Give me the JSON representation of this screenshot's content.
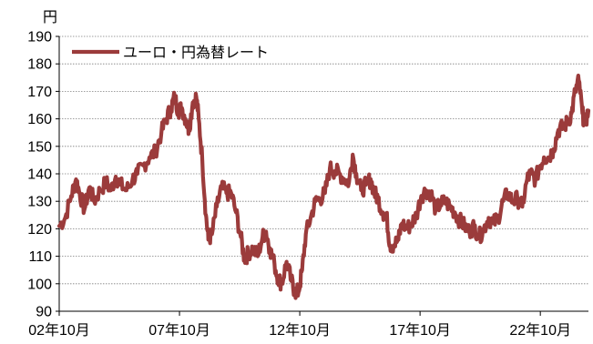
{
  "chart_data": {
    "type": "line",
    "unit_label": "円",
    "yticks": [
      90,
      100,
      110,
      120,
      130,
      140,
      150,
      160,
      170,
      180,
      190
    ],
    "ylim": [
      90,
      190
    ],
    "xlim": [
      2002.75,
      2024.75
    ],
    "xticks": [
      {
        "label": "02年10月",
        "value": 2002.75
      },
      {
        "label": "07年10月",
        "value": 2007.75
      },
      {
        "label": "12年10月",
        "value": 2012.75
      },
      {
        "label": "17年10月",
        "value": 2017.75
      },
      {
        "label": "22年10月",
        "value": 2022.75
      }
    ],
    "legend_position": "top-left",
    "grid": true,
    "series": [
      {
        "name": "ユーロ・円為替レート",
        "color": "#9b3b3b",
        "points": [
          [
            2002.75,
            121
          ],
          [
            2003.0,
            124
          ],
          [
            2003.25,
            132
          ],
          [
            2003.45,
            138
          ],
          [
            2003.6,
            133
          ],
          [
            2003.8,
            127
          ],
          [
            2004.0,
            135
          ],
          [
            2004.2,
            130
          ],
          [
            2004.45,
            134
          ],
          [
            2004.7,
            137
          ],
          [
            2004.9,
            134
          ],
          [
            2005.1,
            139
          ],
          [
            2005.3,
            136
          ],
          [
            2005.55,
            134
          ],
          [
            2005.8,
            138
          ],
          [
            2006.0,
            140
          ],
          [
            2006.25,
            143
          ],
          [
            2006.5,
            146
          ],
          [
            2006.75,
            148
          ],
          [
            2007.0,
            155
          ],
          [
            2007.2,
            160
          ],
          [
            2007.4,
            164
          ],
          [
            2007.55,
            168
          ],
          [
            2007.7,
            163
          ],
          [
            2007.85,
            164
          ],
          [
            2008.0,
            160
          ],
          [
            2008.15,
            156
          ],
          [
            2008.3,
            166
          ],
          [
            2008.45,
            168
          ],
          [
            2008.55,
            160
          ],
          [
            2008.7,
            145
          ],
          [
            2008.85,
            125
          ],
          [
            2008.95,
            116
          ],
          [
            2009.1,
            118
          ],
          [
            2009.3,
            128
          ],
          [
            2009.5,
            135
          ],
          [
            2009.7,
            133
          ],
          [
            2009.9,
            133
          ],
          [
            2010.1,
            126
          ],
          [
            2010.3,
            117
          ],
          [
            2010.45,
            109
          ],
          [
            2010.6,
            111
          ],
          [
            2010.8,
            113
          ],
          [
            2011.0,
            110
          ],
          [
            2011.2,
            117
          ],
          [
            2011.35,
            119
          ],
          [
            2011.5,
            113
          ],
          [
            2011.7,
            107
          ],
          [
            2011.85,
            102
          ],
          [
            2012.0,
            100
          ],
          [
            2012.2,
            108
          ],
          [
            2012.4,
            101
          ],
          [
            2012.55,
            97
          ],
          [
            2012.7,
            97
          ],
          [
            2012.85,
            105
          ],
          [
            2013.0,
            118
          ],
          [
            2013.2,
            124
          ],
          [
            2013.4,
            130
          ],
          [
            2013.6,
            131
          ],
          [
            2013.8,
            133
          ],
          [
            2014.0,
            142
          ],
          [
            2014.2,
            141
          ],
          [
            2014.4,
            140
          ],
          [
            2014.6,
            138
          ],
          [
            2014.8,
            137
          ],
          [
            2014.95,
            147
          ],
          [
            2015.1,
            140
          ],
          [
            2015.3,
            134
          ],
          [
            2015.5,
            136
          ],
          [
            2015.7,
            138
          ],
          [
            2015.85,
            133
          ],
          [
            2016.0,
            131
          ],
          [
            2016.2,
            126
          ],
          [
            2016.35,
            125
          ],
          [
            2016.5,
            114
          ],
          [
            2016.65,
            114
          ],
          [
            2016.85,
            116
          ],
          [
            2017.0,
            122
          ],
          [
            2017.2,
            120
          ],
          [
            2017.4,
            122
          ],
          [
            2017.6,
            125
          ],
          [
            2017.8,
            132
          ],
          [
            2018.0,
            134
          ],
          [
            2018.2,
            133
          ],
          [
            2018.4,
            127
          ],
          [
            2018.6,
            129
          ],
          [
            2018.8,
            130
          ],
          [
            2019.0,
            128
          ],
          [
            2019.2,
            126
          ],
          [
            2019.4,
            123
          ],
          [
            2019.6,
            121
          ],
          [
            2019.8,
            119
          ],
          [
            2020.0,
            121
          ],
          [
            2020.2,
            117
          ],
          [
            2020.4,
            120
          ],
          [
            2020.6,
            124
          ],
          [
            2020.8,
            122
          ],
          [
            2021.0,
            124
          ],
          [
            2021.2,
            130
          ],
          [
            2021.4,
            133
          ],
          [
            2021.6,
            130
          ],
          [
            2021.8,
            131
          ],
          [
            2022.0,
            128
          ],
          [
            2022.2,
            138
          ],
          [
            2022.35,
            140
          ],
          [
            2022.55,
            138
          ],
          [
            2022.75,
            143
          ],
          [
            2022.9,
            146
          ],
          [
            2023.1,
            146
          ],
          [
            2023.3,
            149
          ],
          [
            2023.5,
            156
          ],
          [
            2023.7,
            157
          ],
          [
            2023.9,
            159
          ],
          [
            2024.05,
            162
          ],
          [
            2024.2,
            170
          ],
          [
            2024.35,
            174
          ],
          [
            2024.5,
            162
          ],
          [
            2024.6,
            158
          ],
          [
            2024.75,
            163
          ]
        ]
      }
    ]
  }
}
